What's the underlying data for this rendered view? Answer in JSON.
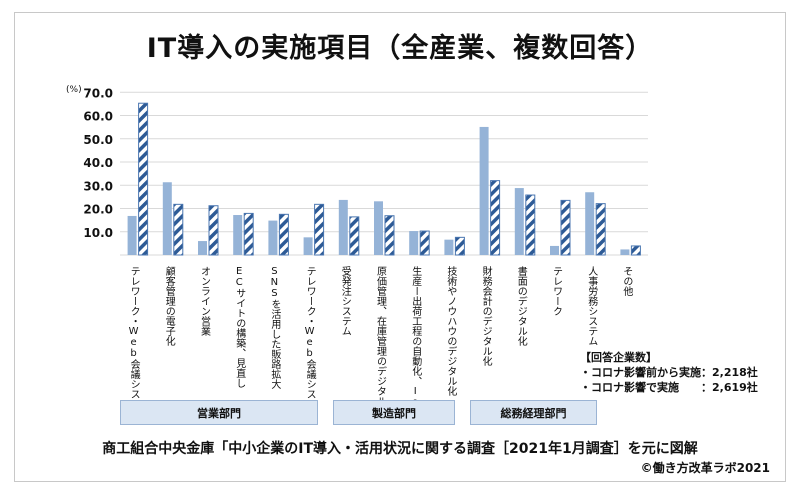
{
  "title": "IT導入の実施項目（全産業、複数回答）",
  "chart_data": {
    "type": "bar",
    "title": "IT導入の実施項目（全産業、複数回答）",
    "ylabel": "(%)",
    "ylim": [
      0,
      70
    ],
    "yticks": [
      "10.0",
      "20.0",
      "30.0",
      "40.0",
      "50.0",
      "60.0",
      "70.0"
    ],
    "grid": true,
    "categories": [
      "テレワーク・Web会議システム",
      "顧客管理の電子化",
      "オンライン営業",
      "ECサイトの構築、見直し",
      "SNSを活用した販路拡大",
      "テレワーク・Web会議システム",
      "受発注システム",
      "原価管理、在庫管理のデジタル化",
      "生産ー出荷工程の自動化、IoT化",
      "技術やノウハウのデジタル化",
      "財務会計のデジタル化",
      "書面のデジタル化",
      "テレワーク",
      "人事労務システム",
      "その他"
    ],
    "series": [
      {
        "style": "solid",
        "color": "#95b3d7",
        "values": [
          16.8,
          31.3,
          6.0,
          17.2,
          14.8,
          7.6,
          23.7,
          23.1,
          10.3,
          6.6,
          55.1,
          28.8,
          3.9,
          27.0,
          2.4
        ]
      },
      {
        "style": "hatched",
        "color": "#2e5b96",
        "values": [
          65.3,
          21.8,
          21.2,
          17.9,
          17.5,
          21.8,
          16.4,
          16.9,
          10.3,
          7.6,
          32.0,
          25.8,
          23.5,
          22.1,
          3.9
        ]
      }
    ],
    "groups": [
      {
        "label": "営業部門",
        "categories": 6
      },
      {
        "label": "製造部門",
        "categories": 4
      },
      {
        "label": "総務経理部門",
        "categories": 5
      }
    ]
  },
  "note": {
    "heading": "【回答企業数】",
    "line1": "・コロナ影響前から実施：2,218社",
    "line2": "・コロナ影響で実施　　：2,619社"
  },
  "source": "商工組合中央金庫「中小企業のIT導入・活用状況に関する調査［2021年1月調査］を元に図解",
  "copyright": "©働き方改革ラボ2021"
}
